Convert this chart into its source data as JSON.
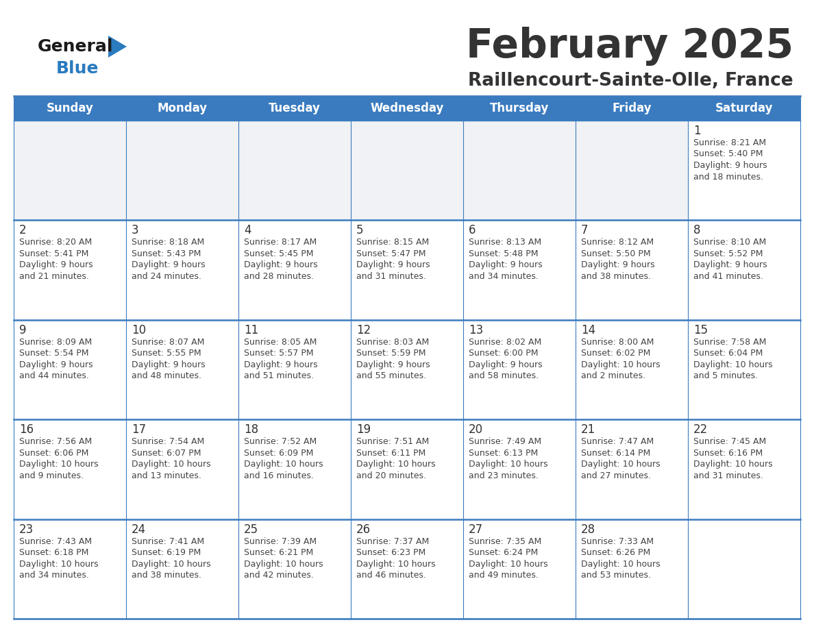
{
  "title": "February 2025",
  "subtitle": "Raillencourt-Sainte-Olle, France",
  "header_bg_color": "#3a7bbf",
  "header_text_color": "#ffffff",
  "day_names": [
    "Sunday",
    "Monday",
    "Tuesday",
    "Wednesday",
    "Thursday",
    "Friday",
    "Saturday"
  ],
  "grid_line_color": "#3a7bbf",
  "cell_bg_white": "#ffffff",
  "cell_bg_gray": "#f0f2f5",
  "date_color": "#333333",
  "info_color": "#444444",
  "bg_color": "#ffffff",
  "logo_general_color": "#1a1a1a",
  "logo_blue_color": "#2b7bbf",
  "calendar_data": [
    [
      null,
      null,
      null,
      null,
      null,
      null,
      {
        "day": 1,
        "sunrise": "8:21 AM",
        "sunset": "5:40 PM",
        "daylight_h": "9 hours",
        "daylight_m": "and 18 minutes."
      }
    ],
    [
      {
        "day": 2,
        "sunrise": "8:20 AM",
        "sunset": "5:41 PM",
        "daylight_h": "9 hours",
        "daylight_m": "and 21 minutes."
      },
      {
        "day": 3,
        "sunrise": "8:18 AM",
        "sunset": "5:43 PM",
        "daylight_h": "9 hours",
        "daylight_m": "and 24 minutes."
      },
      {
        "day": 4,
        "sunrise": "8:17 AM",
        "sunset": "5:45 PM",
        "daylight_h": "9 hours",
        "daylight_m": "and 28 minutes."
      },
      {
        "day": 5,
        "sunrise": "8:15 AM",
        "sunset": "5:47 PM",
        "daylight_h": "9 hours",
        "daylight_m": "and 31 minutes."
      },
      {
        "day": 6,
        "sunrise": "8:13 AM",
        "sunset": "5:48 PM",
        "daylight_h": "9 hours",
        "daylight_m": "and 34 minutes."
      },
      {
        "day": 7,
        "sunrise": "8:12 AM",
        "sunset": "5:50 PM",
        "daylight_h": "9 hours",
        "daylight_m": "and 38 minutes."
      },
      {
        "day": 8,
        "sunrise": "8:10 AM",
        "sunset": "5:52 PM",
        "daylight_h": "9 hours",
        "daylight_m": "and 41 minutes."
      }
    ],
    [
      {
        "day": 9,
        "sunrise": "8:09 AM",
        "sunset": "5:54 PM",
        "daylight_h": "9 hours",
        "daylight_m": "and 44 minutes."
      },
      {
        "day": 10,
        "sunrise": "8:07 AM",
        "sunset": "5:55 PM",
        "daylight_h": "9 hours",
        "daylight_m": "and 48 minutes."
      },
      {
        "day": 11,
        "sunrise": "8:05 AM",
        "sunset": "5:57 PM",
        "daylight_h": "9 hours",
        "daylight_m": "and 51 minutes."
      },
      {
        "day": 12,
        "sunrise": "8:03 AM",
        "sunset": "5:59 PM",
        "daylight_h": "9 hours",
        "daylight_m": "and 55 minutes."
      },
      {
        "day": 13,
        "sunrise": "8:02 AM",
        "sunset": "6:00 PM",
        "daylight_h": "9 hours",
        "daylight_m": "and 58 minutes."
      },
      {
        "day": 14,
        "sunrise": "8:00 AM",
        "sunset": "6:02 PM",
        "daylight_h": "10 hours",
        "daylight_m": "and 2 minutes."
      },
      {
        "day": 15,
        "sunrise": "7:58 AM",
        "sunset": "6:04 PM",
        "daylight_h": "10 hours",
        "daylight_m": "and 5 minutes."
      }
    ],
    [
      {
        "day": 16,
        "sunrise": "7:56 AM",
        "sunset": "6:06 PM",
        "daylight_h": "10 hours",
        "daylight_m": "and 9 minutes."
      },
      {
        "day": 17,
        "sunrise": "7:54 AM",
        "sunset": "6:07 PM",
        "daylight_h": "10 hours",
        "daylight_m": "and 13 minutes."
      },
      {
        "day": 18,
        "sunrise": "7:52 AM",
        "sunset": "6:09 PM",
        "daylight_h": "10 hours",
        "daylight_m": "and 16 minutes."
      },
      {
        "day": 19,
        "sunrise": "7:51 AM",
        "sunset": "6:11 PM",
        "daylight_h": "10 hours",
        "daylight_m": "and 20 minutes."
      },
      {
        "day": 20,
        "sunrise": "7:49 AM",
        "sunset": "6:13 PM",
        "daylight_h": "10 hours",
        "daylight_m": "and 23 minutes."
      },
      {
        "day": 21,
        "sunrise": "7:47 AM",
        "sunset": "6:14 PM",
        "daylight_h": "10 hours",
        "daylight_m": "and 27 minutes."
      },
      {
        "day": 22,
        "sunrise": "7:45 AM",
        "sunset": "6:16 PM",
        "daylight_h": "10 hours",
        "daylight_m": "and 31 minutes."
      }
    ],
    [
      {
        "day": 23,
        "sunrise": "7:43 AM",
        "sunset": "6:18 PM",
        "daylight_h": "10 hours",
        "daylight_m": "and 34 minutes."
      },
      {
        "day": 24,
        "sunrise": "7:41 AM",
        "sunset": "6:19 PM",
        "daylight_h": "10 hours",
        "daylight_m": "and 38 minutes."
      },
      {
        "day": 25,
        "sunrise": "7:39 AM",
        "sunset": "6:21 PM",
        "daylight_h": "10 hours",
        "daylight_m": "and 42 minutes."
      },
      {
        "day": 26,
        "sunrise": "7:37 AM",
        "sunset": "6:23 PM",
        "daylight_h": "10 hours",
        "daylight_m": "and 46 minutes."
      },
      {
        "day": 27,
        "sunrise": "7:35 AM",
        "sunset": "6:24 PM",
        "daylight_h": "10 hours",
        "daylight_m": "and 49 minutes."
      },
      {
        "day": 28,
        "sunrise": "7:33 AM",
        "sunset": "6:26 PM",
        "daylight_h": "10 hours",
        "daylight_m": "and 53 minutes."
      },
      null
    ]
  ]
}
